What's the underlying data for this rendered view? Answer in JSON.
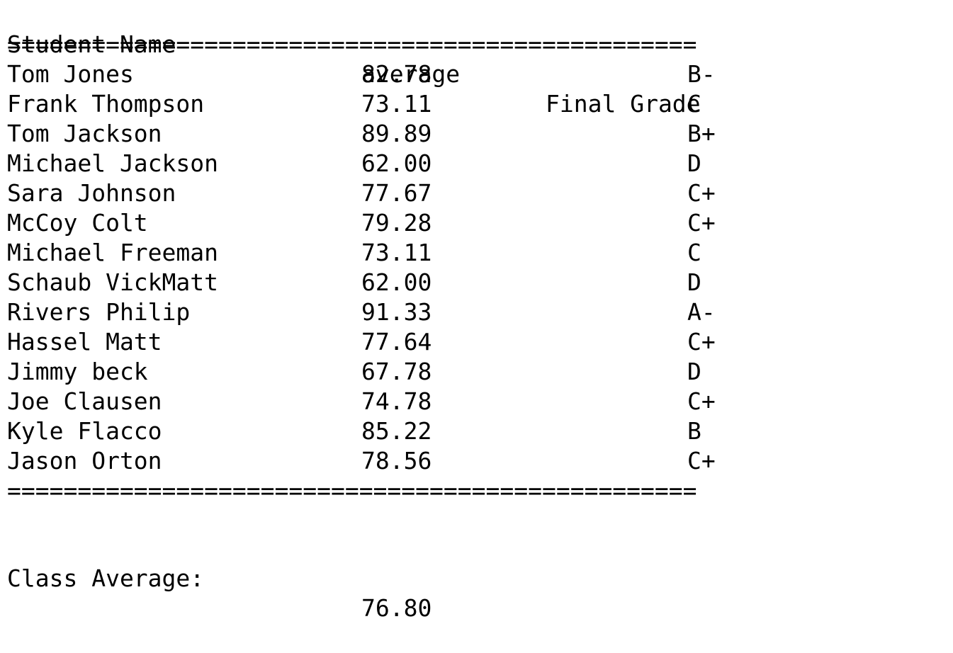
{
  "header": {
    "name_label": "Student Name",
    "average_label": "average",
    "grade_label": "Final Grade"
  },
  "separator": "=================================================",
  "rows": [
    {
      "name": "Tom Jones",
      "average": "82.78",
      "grade": "B-"
    },
    {
      "name": "Frank Thompson",
      "average": "73.11",
      "grade": "C"
    },
    {
      "name": "Tom Jackson",
      "average": "89.89",
      "grade": "B+"
    },
    {
      "name": "Michael Jackson",
      "average": "62.00",
      "grade": "D"
    },
    {
      "name": "Sara Johnson",
      "average": "77.67",
      "grade": "C+"
    },
    {
      "name": "McCoy Colt",
      "average": "79.28",
      "grade": "C+"
    },
    {
      "name": "Michael Freeman",
      "average": "73.11",
      "grade": "C"
    },
    {
      "name": "Schaub VickMatt",
      "average": "62.00",
      "grade": "D"
    },
    {
      "name": "Rivers Philip",
      "average": "91.33",
      "grade": "A-"
    },
    {
      "name": "Hassel Matt",
      "average": "77.64",
      "grade": "C+"
    },
    {
      "name": "Jimmy beck",
      "average": "67.78",
      "grade": "D"
    },
    {
      "name": "Joe Clausen",
      "average": "74.78",
      "grade": "C+"
    },
    {
      "name": "Kyle Flacco",
      "average": "85.22",
      "grade": "B"
    },
    {
      "name": "Jason Orton",
      "average": "78.56",
      "grade": "C+"
    }
  ],
  "summary": {
    "label": "Class Average:",
    "value": "76.80"
  }
}
